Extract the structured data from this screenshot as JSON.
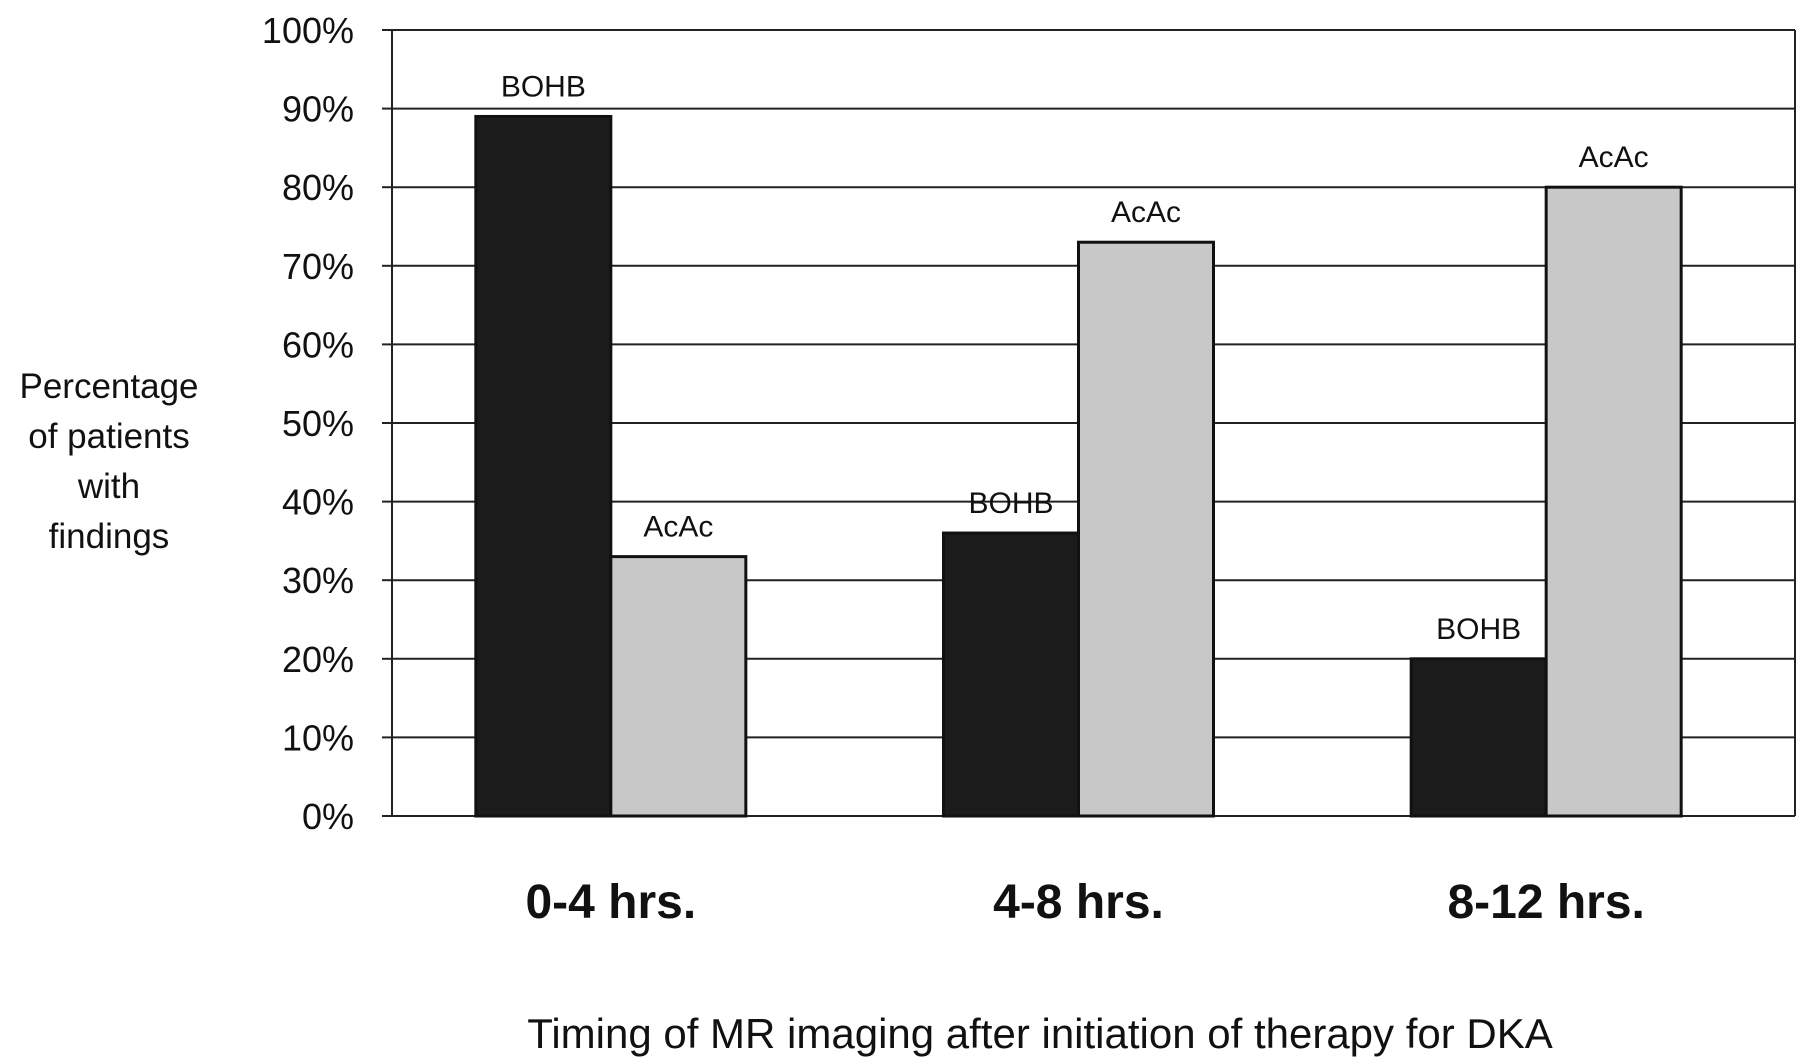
{
  "chart_data": {
    "type": "bar",
    "title": "",
    "xlabel": "Timing of MR imaging after initiation of therapy for DKA",
    "ylabel_lines": [
      "Percentage",
      "of patients",
      "with",
      "findings"
    ],
    "categories": [
      "0-4 hrs.",
      "4-8 hrs.",
      "8-12 hrs."
    ],
    "ylim": [
      0,
      100
    ],
    "yticks": [
      "0%",
      "10%",
      "20%",
      "30%",
      "40%",
      "50%",
      "60%",
      "70%",
      "80%",
      "90%",
      "100%"
    ],
    "grid": true,
    "legend": "none",
    "series": [
      {
        "name": "BOHB",
        "color": "#1b1b1b",
        "values": [
          89,
          36,
          20
        ]
      },
      {
        "name": "AcAc",
        "color": "#c8c8c8",
        "values": [
          33,
          73,
          80
        ]
      }
    ]
  }
}
